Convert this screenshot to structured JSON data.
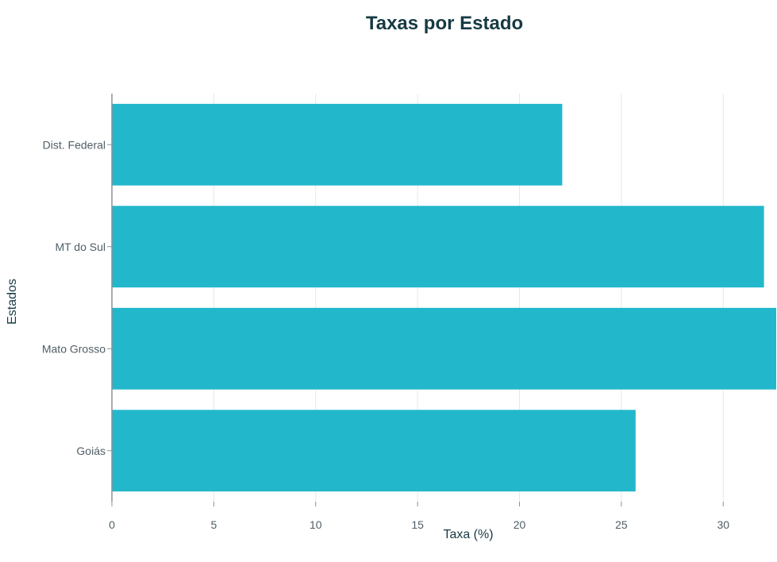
{
  "chart_data": {
    "type": "bar",
    "orientation": "horizontal",
    "title": "Taxas por Estado",
    "xlabel": "Taxa (%)",
    "ylabel": "Estados",
    "categories": [
      "Dist. Federal",
      "MT do Sul",
      "Mato Grosso",
      "Goiás"
    ],
    "values": [
      22.1,
      32.0,
      33.4,
      25.7
    ],
    "xlim": [
      0,
      32.6
    ],
    "x_ticks": [
      0,
      5,
      10,
      15,
      20,
      25,
      30
    ],
    "grid": "vertical",
    "legend": "none",
    "colors": {
      "bar": "#22B7CB",
      "title": "#163A43",
      "axis_text": "#4F5E66",
      "grid": "#E7E7E7",
      "axis_line": "#8B9297"
    }
  }
}
